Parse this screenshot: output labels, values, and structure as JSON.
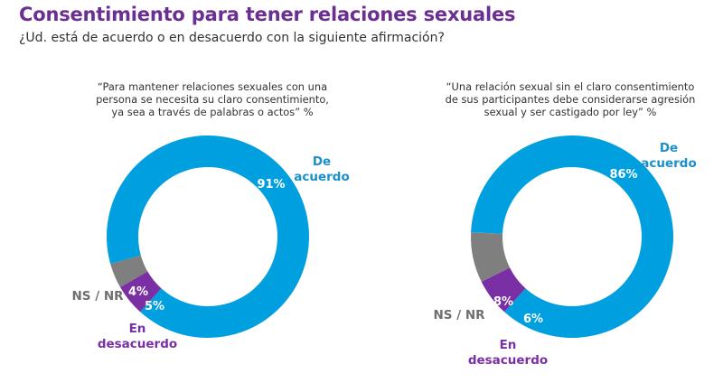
{
  "header": {
    "title": "Consentimiento para tener relaciones sexuales",
    "subtitle": "¿Ud. está de acuerdo o en desacuerdo con la siguiente afirmación?"
  },
  "chart_data": [
    {
      "type": "pie",
      "title": "“Para mantener relaciones sexuales con una persona se necesita su claro consentimiento, ya sea a través de palabras o actos” %",
      "title_lines": [
        "“Para mantener relaciones sexuales con una",
        "persona se necesita su claro consentimiento,",
        "ya sea a través de palabras o actos” %"
      ],
      "categories": [
        "De acuerdo",
        "En desacuerdo",
        "NS / NR"
      ],
      "values": [
        91,
        5,
        4
      ],
      "value_labels": [
        "91%",
        "5%",
        "4%"
      ],
      "colors": [
        "#009fdf",
        "#7b2fa5",
        "#7f7f7f"
      ],
      "label_colors": [
        "#1a8fc9",
        "#7b2fa5",
        "#6f6f6f"
      ],
      "category_lines": [
        [
          "De",
          "acuerdo"
        ],
        [
          "En",
          "desacuerdo"
        ],
        [
          "NS / NR"
        ]
      ]
    },
    {
      "type": "pie",
      "title": "“Una relación sexual sin el claro consentimiento de sus participantes debe considerarse agresión sexual y ser castigado por ley” %",
      "title_lines": [
        "“Una relación sexual sin el claro consentimiento",
        "de sus participantes debe considerarse agresión",
        "sexual y ser castigado por ley” %"
      ],
      "categories": [
        "De acuerdo",
        "En desacuerdo",
        "NS / NR"
      ],
      "values": [
        86,
        6,
        8
      ],
      "value_labels": [
        "86%",
        "6%",
        "8%"
      ],
      "colors": [
        "#009fdf",
        "#7b2fa5",
        "#7f7f7f"
      ],
      "label_colors": [
        "#1a8fc9",
        "#7b2fa5",
        "#6f6f6f"
      ],
      "category_lines": [
        [
          "De",
          "acuerdo"
        ],
        [
          "En",
          "desacuerdo"
        ],
        [
          "NS / NR"
        ]
      ]
    }
  ]
}
